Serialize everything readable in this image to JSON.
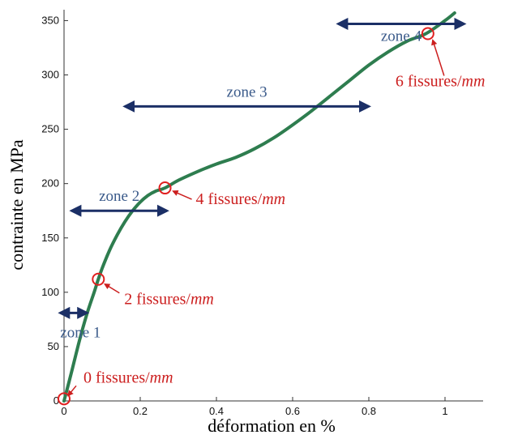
{
  "chart_data": {
    "type": "line",
    "title": "",
    "xlabel": "déformation en %",
    "ylabel": "contrainte en MPa",
    "xlim": [
      0,
      1.1
    ],
    "ylim": [
      0,
      360
    ],
    "xticks": [
      0,
      0.2,
      0.4,
      0.6,
      0.8,
      1
    ],
    "xtick_labels": [
      "0",
      "0.2",
      "0.4",
      "0.6",
      "0.8",
      "1"
    ],
    "yticks": [
      0,
      50,
      100,
      150,
      200,
      250,
      300,
      350
    ],
    "ytick_labels": [
      "0",
      "50",
      "100",
      "150",
      "200",
      "250",
      "300",
      "350"
    ],
    "grid": false,
    "series": [
      {
        "color": "#2e7d4f",
        "x": [
          0,
          0.02,
          0.04,
          0.06,
          0.08,
          0.09,
          0.1,
          0.12,
          0.14,
          0.16,
          0.18,
          0.2,
          0.22,
          0.24,
          0.265,
          0.3,
          0.35,
          0.4,
          0.45,
          0.5,
          0.55,
          0.6,
          0.65,
          0.7,
          0.75,
          0.8,
          0.85,
          0.9,
          0.95,
          1.0,
          1.025
        ],
        "y": [
          0,
          27,
          55,
          80,
          101,
          112,
          122,
          139,
          153,
          165,
          175,
          183,
          189,
          193,
          196,
          203,
          211,
          218,
          224,
          232,
          242,
          254,
          267,
          281,
          295,
          309,
          321,
          331,
          338,
          350,
          357
        ]
      }
    ],
    "zones": [
      {
        "label": "zone 1",
        "x_start": -0.01,
        "x_end": 0.06,
        "y": 81
      },
      {
        "label": "zone 2",
        "x_start": 0.02,
        "x_end": 0.27,
        "y": 175
      },
      {
        "label": "zone 3",
        "x_start": 0.16,
        "x_end": 0.8,
        "y": 271
      },
      {
        "label": "zone 4",
        "x_start": 0.72,
        "x_end": 1.05,
        "y": 347
      }
    ],
    "annotations": [
      {
        "text": "0 fissures/mm",
        "prefix": "0 fissures/",
        "unit": "mm",
        "x": 0,
        "y": 2
      },
      {
        "text": "2 fissures/mm",
        "prefix": "2 fissures/",
        "unit": "mm",
        "x": 0.09,
        "y": 112
      },
      {
        "text": "4 fissures/mm",
        "prefix": "4 fissures/",
        "unit": "mm",
        "x": 0.265,
        "y": 196
      },
      {
        "text": "6 fissures/mm",
        "prefix": "6 fissures/",
        "unit": "mm",
        "x": 0.955,
        "y": 338
      }
    ],
    "colors": {
      "curve": "#2e7d4f",
      "zone_arrow": "#1b2f66",
      "zone_label": "#3a5a8a",
      "marker": "#e02020",
      "annotation": "#cc1f1f"
    }
  }
}
